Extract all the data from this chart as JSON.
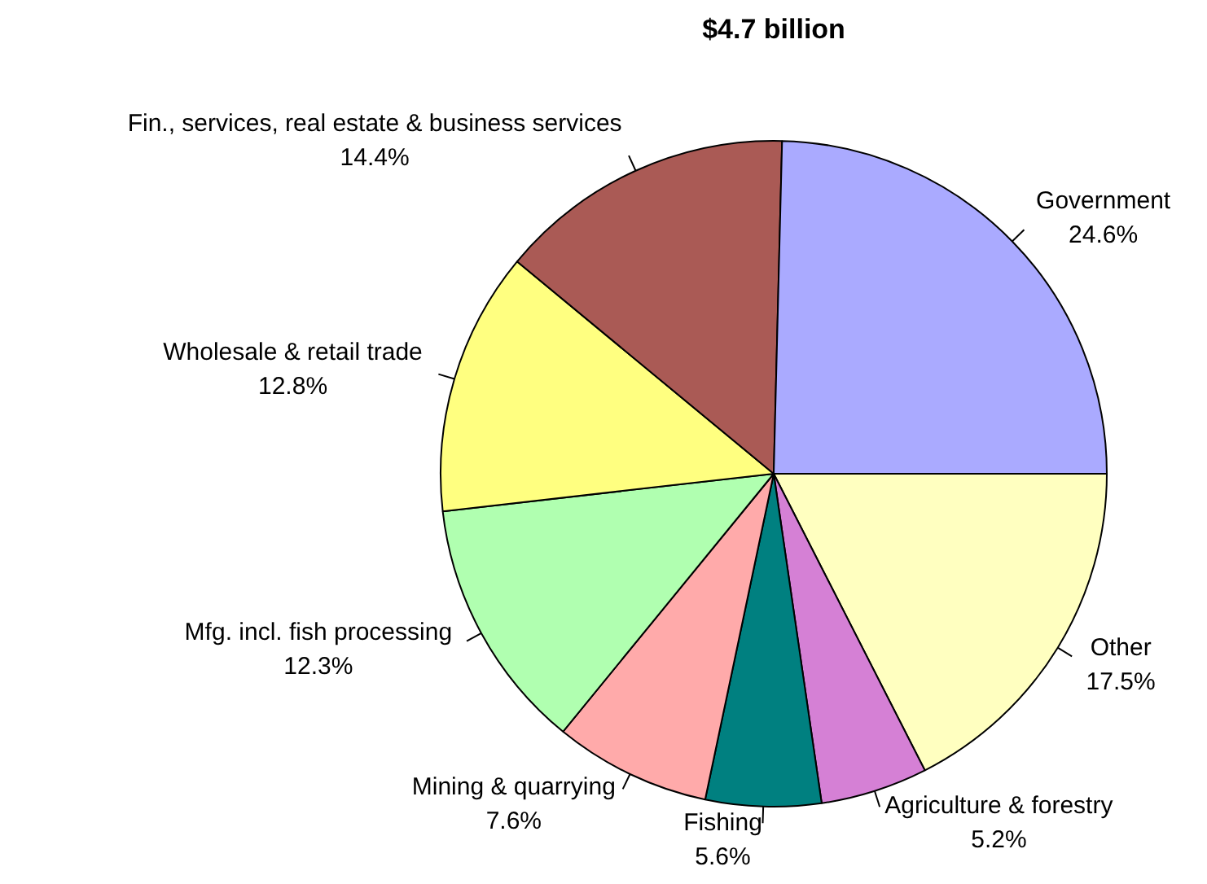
{
  "chart_data": {
    "type": "pie",
    "title": "$4.7 billion",
    "categories": [
      "Other",
      "Agriculture & forestry",
      "Fishing",
      "Mining & quarrying",
      "Mfg. incl. fish processing",
      "Wholesale & retail trade",
      "Fin., services, real estate & business services",
      "Government"
    ],
    "values": [
      17.5,
      5.2,
      5.6,
      7.6,
      12.3,
      12.8,
      14.4,
      24.6
    ],
    "value_labels": [
      "17.5%",
      "5.2%",
      "5.6%",
      "7.6%",
      "12.3%",
      "12.8%",
      "14.4%",
      "24.6%"
    ],
    "colors": [
      "#ffffc0",
      "#d580d5",
      "#008080",
      "#ffaaaa",
      "#b0ffb0",
      "#ffff80",
      "#aa5a55",
      "#aaaaff"
    ],
    "legend": false
  }
}
